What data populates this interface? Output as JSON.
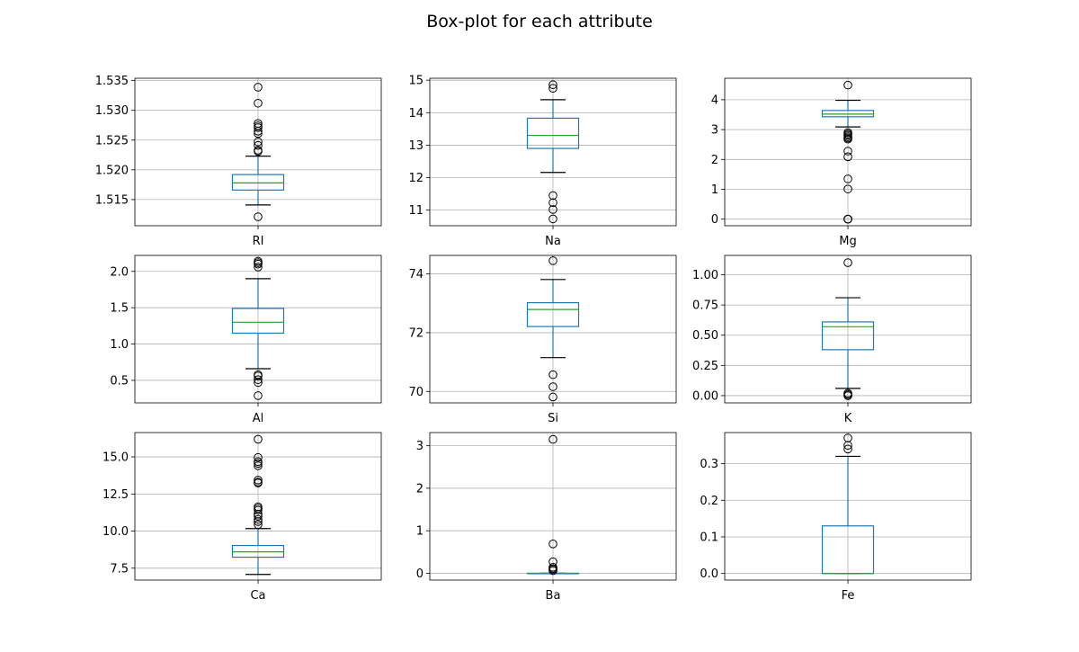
{
  "figure": {
    "title": "Box-plot for each attribute"
  },
  "colors": {
    "box": "#1f77b4",
    "median": "#2ca02c",
    "whisker_cap": "#000000",
    "grid": "#b0b0b0",
    "flier": "#000000",
    "axes": "#000000"
  },
  "chart_data": [
    {
      "type": "box",
      "category": "RI",
      "grid": true,
      "ylim": [
        1.5106,
        1.5354
      ],
      "yticks": [
        1.515,
        1.52,
        1.525,
        1.53,
        1.535
      ],
      "ytick_labels": [
        "1.515",
        "1.520",
        "1.525",
        "1.530",
        "1.535"
      ],
      "box": {
        "whislo": 1.5141,
        "q1": 1.5166,
        "med": 1.5178,
        "q3": 1.5192,
        "whishi": 1.5223
      },
      "fliers": [
        1.5121,
        1.5231,
        1.5233,
        1.5241,
        1.5247,
        1.5261,
        1.5265,
        1.5271,
        1.5274,
        1.5278,
        1.5312,
        1.5339
      ]
    },
    {
      "type": "box",
      "category": "Na",
      "grid": true,
      "ylim": [
        10.52,
        15.06
      ],
      "yticks": [
        11,
        12,
        13,
        14,
        15
      ],
      "ytick_labels": [
        "11",
        "12",
        "13",
        "14",
        "15"
      ],
      "box": {
        "whislo": 12.16,
        "q1": 12.9,
        "med": 13.3,
        "q3": 13.83,
        "whishi": 14.4
      },
      "fliers": [
        10.73,
        11.02,
        11.23,
        11.45,
        14.75,
        14.86
      ]
    },
    {
      "type": "box",
      "category": "Mg",
      "grid": true,
      "ylim": [
        -0.22,
        4.72
      ],
      "yticks": [
        0,
        1,
        2,
        3,
        4
      ],
      "ytick_labels": [
        "0",
        "1",
        "2",
        "3",
        "4"
      ],
      "box": {
        "whislo": 3.09,
        "q1": 3.43,
        "med": 3.52,
        "q3": 3.64,
        "whishi": 3.98
      },
      "fliers": [
        0,
        0,
        0,
        1.01,
        1.35,
        2.09,
        2.28,
        2.68,
        2.72,
        2.76,
        2.81,
        2.85,
        2.9,
        4.49
      ]
    },
    {
      "type": "box",
      "category": "Al",
      "grid": true,
      "ylim": [
        0.19,
        2.22
      ],
      "yticks": [
        0.5,
        1.0,
        1.5,
        2.0
      ],
      "ytick_labels": [
        "0.5",
        "1.0",
        "1.5",
        "2.0"
      ],
      "box": {
        "whislo": 0.66,
        "q1": 1.15,
        "med": 1.3,
        "q3": 1.49,
        "whishi": 1.9
      },
      "fliers": [
        0.29,
        0.47,
        0.51,
        0.56,
        0.58,
        2.06,
        2.1,
        2.12,
        2.14
      ]
    },
    {
      "type": "box",
      "category": "Si",
      "grid": true,
      "ylim": [
        69.61,
        74.63
      ],
      "yticks": [
        70,
        72,
        74
      ],
      "ytick_labels": [
        "70",
        "72",
        "74"
      ],
      "box": {
        "whislo": 71.15,
        "q1": 72.21,
        "med": 72.79,
        "q3": 73.02,
        "whishi": 73.81
      },
      "fliers": [
        69.81,
        70.16,
        70.57,
        74.45
      ]
    },
    {
      "type": "box",
      "category": "K",
      "grid": true,
      "ylim": [
        -0.06,
        1.16
      ],
      "yticks": [
        0.0,
        0.25,
        0.5,
        0.75,
        1.0
      ],
      "ytick_labels": [
        "0.00",
        "0.25",
        "0.50",
        "0.75",
        "1.00"
      ],
      "box": {
        "whislo": 0.06,
        "q1": 0.38,
        "med": 0.57,
        "q3": 0.61,
        "whishi": 0.81
      },
      "fliers": [
        0,
        0,
        0.01,
        0.02,
        1.1
      ]
    },
    {
      "type": "box",
      "category": "Ca",
      "grid": true,
      "ylim": [
        6.7,
        16.64
      ],
      "yticks": [
        7.5,
        10.0,
        12.5,
        15.0
      ],
      "ytick_labels": [
        "7.5",
        "10.0",
        "12.5",
        "15.0"
      ],
      "box": {
        "whislo": 7.08,
        "q1": 8.24,
        "med": 8.6,
        "q3": 9.03,
        "whishi": 10.17
      },
      "fliers": [
        10.44,
        10.64,
        10.79,
        11.01,
        11.14,
        11.41,
        11.53,
        11.64,
        13.24,
        13.3,
        13.44,
        14.4,
        14.56,
        14.68,
        14.96,
        16.19
      ]
    },
    {
      "type": "box",
      "category": "Ba",
      "grid": true,
      "ylim": [
        -0.16,
        3.31
      ],
      "yticks": [
        0,
        1,
        2,
        3
      ],
      "ytick_labels": [
        "0",
        "1",
        "2",
        "3"
      ],
      "box": {
        "whislo": 0,
        "q1": 0,
        "med": 0,
        "q3": 0,
        "whishi": 0
      },
      "fliers": [
        0.06,
        0.09,
        0.11,
        0.14,
        0.27,
        0.69,
        3.15
      ]
    },
    {
      "type": "box",
      "category": "Fe",
      "grid": true,
      "ylim": [
        -0.018,
        0.385
      ],
      "yticks": [
        0.0,
        0.1,
        0.2,
        0.3
      ],
      "ytick_labels": [
        "0.0",
        "0.1",
        "0.2",
        "0.3"
      ],
      "box": {
        "whislo": 0,
        "q1": 0,
        "med": 0,
        "q3": 0.13,
        "whishi": 0.32
      },
      "fliers": [
        0.34,
        0.35,
        0.37
      ]
    }
  ]
}
